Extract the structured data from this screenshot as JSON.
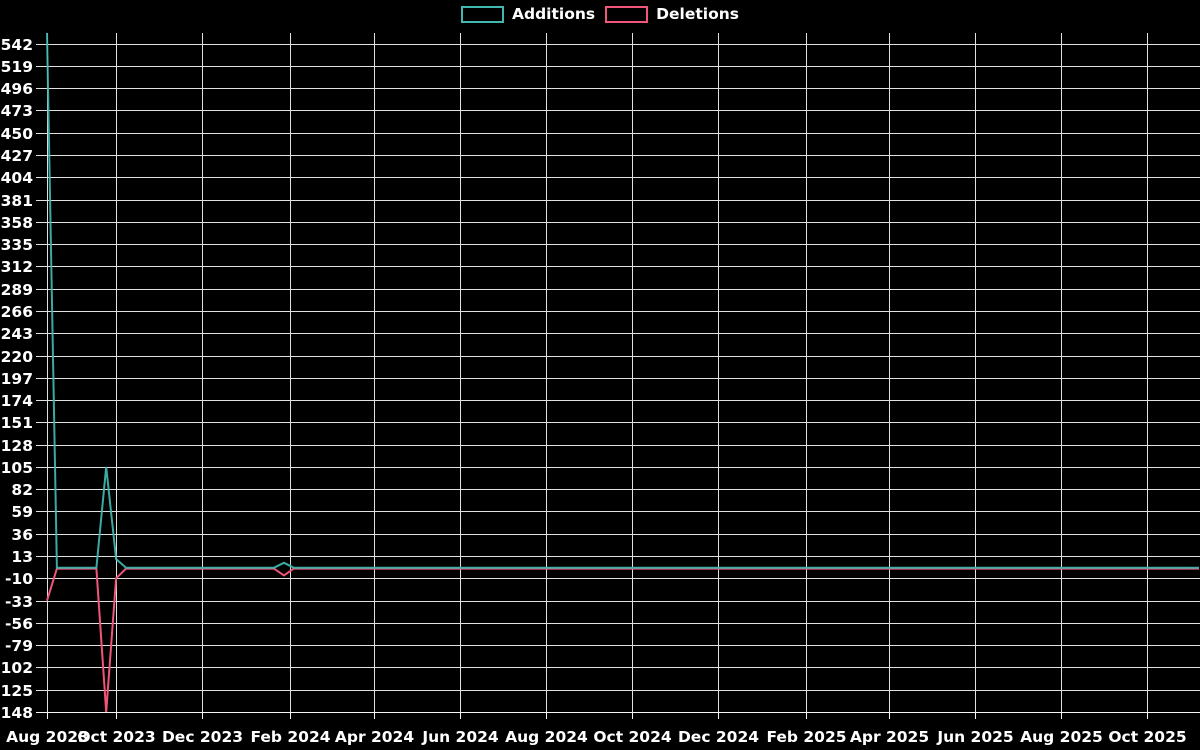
{
  "chart_data": {
    "type": "line",
    "title": "",
    "background_color": "#000000",
    "text_color": "#ffffff",
    "grid": true,
    "grid_color": "#e0e0e0",
    "axis_color": "#f5f5f5",
    "legend_position": "top-center",
    "xlim": [
      "2023-08-13",
      "2025-11-07"
    ],
    "ylim": [
      -148,
      553
    ],
    "y_ticks": [
      542,
      519,
      496,
      473,
      450,
      427,
      404,
      381,
      358,
      335,
      312,
      289,
      266,
      243,
      220,
      197,
      174,
      151,
      128,
      105,
      82,
      59,
      36,
      13,
      -10,
      -33,
      -56,
      -79,
      -102,
      -125,
      -148
    ],
    "x_ticks": [
      {
        "date": "2023-08-13",
        "label": "Aug 2023"
      },
      {
        "date": "2023-10-01",
        "label": "Oct 2023"
      },
      {
        "date": "2023-12-01",
        "label": "Dec 2023"
      },
      {
        "date": "2024-02-01",
        "label": "Feb 2024"
      },
      {
        "date": "2024-04-01",
        "label": "Apr 2024"
      },
      {
        "date": "2024-06-01",
        "label": "Jun 2024"
      },
      {
        "date": "2024-08-01",
        "label": "Aug 2024"
      },
      {
        "date": "2024-10-01",
        "label": "Oct 2024"
      },
      {
        "date": "2024-12-01",
        "label": "Dec 2024"
      },
      {
        "date": "2025-02-01",
        "label": "Feb 2025"
      },
      {
        "date": "2025-04-01",
        "label": "Apr 2025"
      },
      {
        "date": "2025-06-01",
        "label": "Jun 2025"
      },
      {
        "date": "2025-08-01",
        "label": "Aug 2025"
      },
      {
        "date": "2025-10-01",
        "label": "Oct 2025"
      }
    ],
    "series": [
      {
        "name": "Additions",
        "color": "#41b7b0",
        "points": [
          [
            "2023-08-13",
            553
          ],
          [
            "2023-08-20",
            1
          ],
          [
            "2023-09-17",
            1
          ],
          [
            "2023-09-24",
            105
          ],
          [
            "2023-10-01",
            10
          ],
          [
            "2023-10-08",
            1
          ],
          [
            "2024-01-21",
            1
          ],
          [
            "2024-01-28",
            6
          ],
          [
            "2024-02-04",
            1
          ],
          [
            "2025-11-07",
            1
          ]
        ]
      },
      {
        "name": "Deletions",
        "color": "#f0557a",
        "points": [
          [
            "2023-08-13",
            -33
          ],
          [
            "2023-08-20",
            0
          ],
          [
            "2023-09-17",
            0
          ],
          [
            "2023-09-24",
            -148
          ],
          [
            "2023-10-01",
            -10
          ],
          [
            "2023-10-08",
            0
          ],
          [
            "2024-01-21",
            0
          ],
          [
            "2024-01-28",
            -7
          ],
          [
            "2024-02-04",
            0
          ],
          [
            "2025-11-07",
            0
          ]
        ]
      }
    ]
  }
}
